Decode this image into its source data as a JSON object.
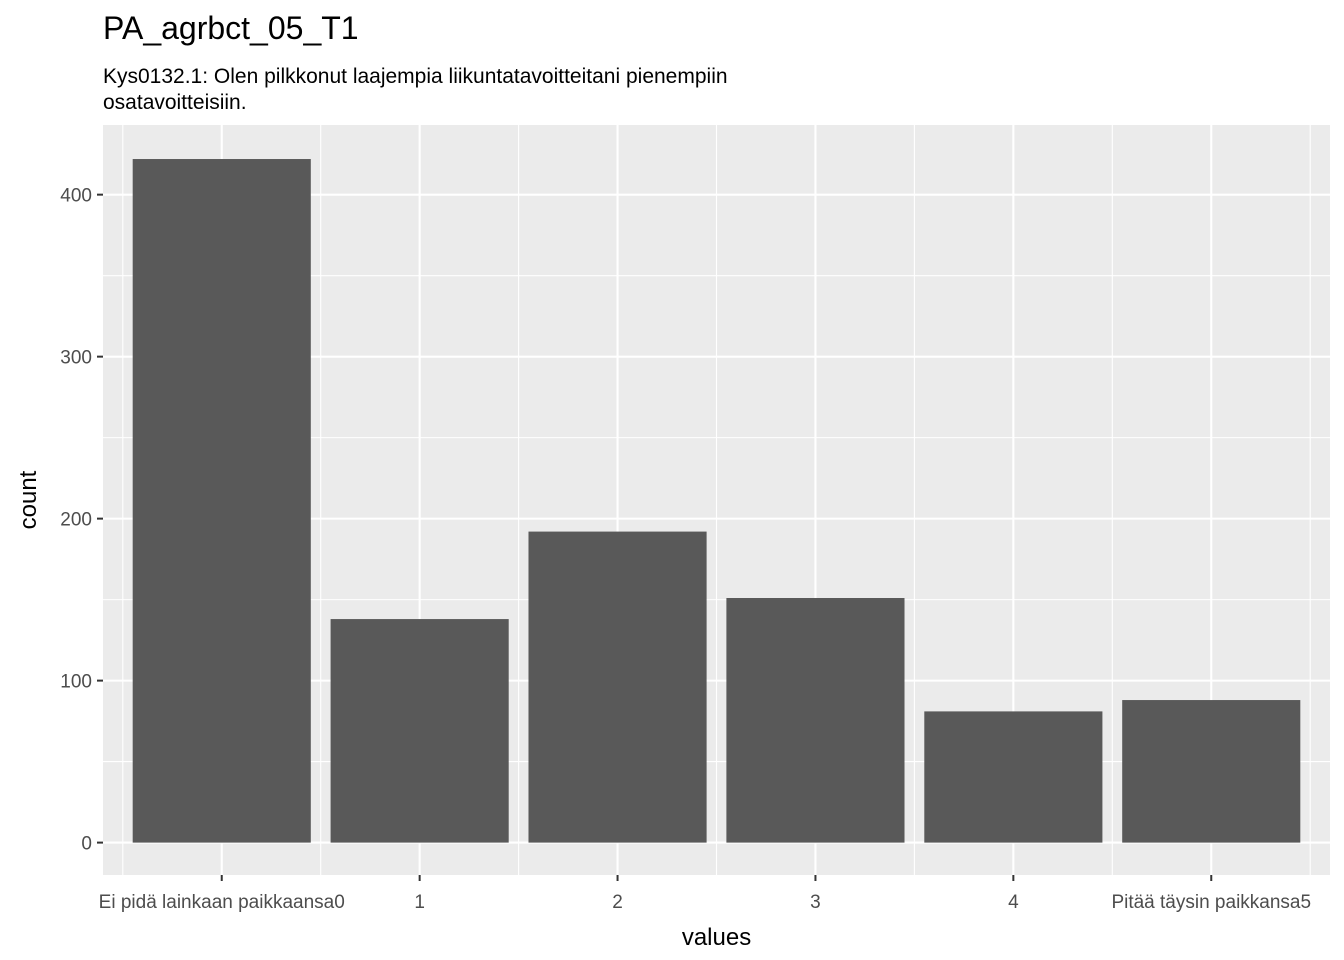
{
  "title": "PA_agrbct_05_T1",
  "subtitle_lines": [
    "Kys0132.1: Olen pilkkonut laajempia liikuntatavoitteitani pienempiin",
    "osatavoitteisiin."
  ],
  "chart_data": {
    "type": "bar",
    "categories": [
      "Ei pidä lainkaan paikkaansa0",
      "1",
      "2",
      "3",
      "4",
      "Pitää täysin paikkansa5"
    ],
    "values": [
      422,
      138,
      192,
      151,
      81,
      88
    ],
    "xlabel": "values",
    "ylabel": "count",
    "ylim": [
      -20,
      443
    ],
    "yticks": [
      0,
      100,
      200,
      300,
      400
    ],
    "grid": true,
    "colors": {
      "panel": "#ebebeb",
      "bar": "#595959",
      "grid_major": "#ffffff",
      "tick_text": "#4d4d4d"
    }
  }
}
